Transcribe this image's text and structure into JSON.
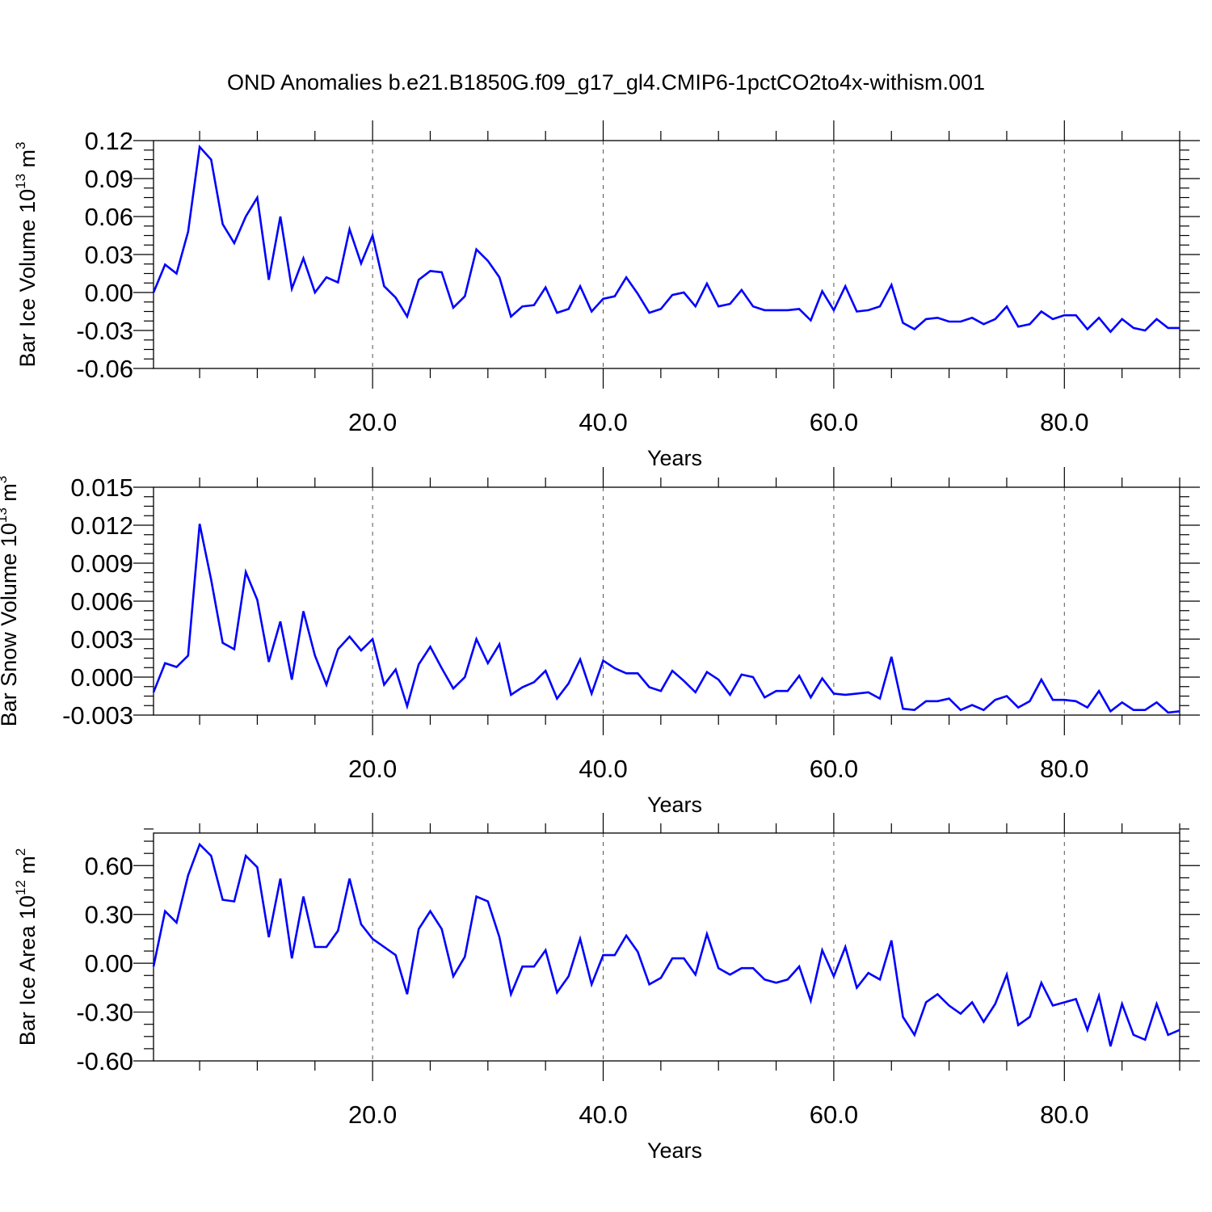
{
  "title": "OND Anomalies b.e21.B1850G.f09_g17_gl4.CMIP6-1pctCO2to4x-withism.001",
  "colors": {
    "series": "#0000ff",
    "axes": "#000000",
    "grid": "#555555"
  },
  "chart_data": [
    {
      "type": "line",
      "ylabel_main": "Bar Ice Volume 10",
      "ylabel_exp": "13",
      "ylabel_unit": " m",
      "ylabel_unit_exp": "3",
      "xlabel": "Years",
      "xlim": [
        1,
        90
      ],
      "ylim": [
        -0.06,
        0.12
      ],
      "x_ticks": [
        20.0,
        40.0,
        60.0,
        80.0
      ],
      "x_tick_labels": [
        "20.0",
        "40.0",
        "60.0",
        "80.0"
      ],
      "y_ticks": [
        0.12,
        0.09,
        0.06,
        0.03,
        0.0,
        -0.03,
        -0.06
      ],
      "y_tick_labels": [
        "0.12",
        "0.09",
        "0.06",
        "0.03",
        "0.00",
        "-0.03",
        "-0.06"
      ],
      "grid": "vertical dashed at major x ticks",
      "x": [
        1,
        2,
        3,
        4,
        5,
        6,
        7,
        8,
        9,
        10,
        11,
        12,
        13,
        14,
        15,
        16,
        17,
        18,
        19,
        20,
        21,
        22,
        23,
        24,
        25,
        26,
        27,
        28,
        29,
        30,
        31,
        32,
        33,
        34,
        35,
        36,
        37,
        38,
        39,
        40,
        41,
        42,
        43,
        44,
        45,
        46,
        47,
        48,
        49,
        50,
        51,
        52,
        53,
        54,
        55,
        56,
        57,
        58,
        59,
        60,
        61,
        62,
        63,
        64,
        65,
        66,
        67,
        68,
        69,
        70,
        71,
        72,
        73,
        74,
        75,
        76,
        77,
        78,
        79,
        80,
        81,
        82,
        83,
        84,
        85,
        86,
        87,
        88,
        89,
        90
      ],
      "y": [
        0.0,
        0.022,
        0.015,
        0.048,
        0.115,
        0.105,
        0.054,
        0.039,
        0.06,
        0.075,
        0.01,
        0.06,
        0.003,
        0.027,
        0.0,
        0.012,
        0.008,
        0.05,
        0.023,
        0.045,
        0.005,
        -0.004,
        -0.019,
        0.01,
        0.017,
        0.016,
        -0.012,
        -0.003,
        0.034,
        0.025,
        0.012,
        -0.019,
        -0.011,
        -0.01,
        0.004,
        -0.016,
        -0.013,
        0.005,
        -0.015,
        -0.005,
        -0.003,
        0.012,
        -0.001,
        -0.016,
        -0.013,
        -0.002,
        0.0,
        -0.011,
        0.007,
        -0.011,
        -0.009,
        0.002,
        -0.011,
        -0.014,
        -0.014,
        -0.014,
        -0.013,
        -0.022,
        0.001,
        -0.014,
        0.005,
        -0.015,
        -0.014,
        -0.011,
        0.006,
        -0.024,
        -0.029,
        -0.021,
        -0.02,
        -0.023,
        -0.023,
        -0.02,
        -0.025,
        -0.021,
        -0.011,
        -0.027,
        -0.025,
        -0.015,
        -0.021,
        -0.018,
        -0.018,
        -0.029,
        -0.02,
        -0.031,
        -0.021,
        -0.028,
        -0.03,
        -0.021,
        -0.028,
        -0.028
      ]
    },
    {
      "type": "line",
      "ylabel_main": "Bar Snow Volume 10",
      "ylabel_exp": "13",
      "ylabel_unit": " m",
      "ylabel_unit_exp": "3",
      "xlabel": "Years",
      "xlim": [
        1,
        90
      ],
      "ylim": [
        -0.003,
        0.015
      ],
      "x_ticks": [
        20.0,
        40.0,
        60.0,
        80.0
      ],
      "x_tick_labels": [
        "20.0",
        "40.0",
        "60.0",
        "80.0"
      ],
      "y_ticks": [
        0.015,
        0.012,
        0.009,
        0.006,
        0.003,
        0.0,
        -0.003
      ],
      "y_tick_labels": [
        "0.015",
        "0.012",
        "0.009",
        "0.006",
        "0.003",
        "0.000",
        "-0.003"
      ],
      "grid": "vertical dashed at major x ticks",
      "x": [
        1,
        2,
        3,
        4,
        5,
        6,
        7,
        8,
        9,
        10,
        11,
        12,
        13,
        14,
        15,
        16,
        17,
        18,
        19,
        20,
        21,
        22,
        23,
        24,
        25,
        26,
        27,
        28,
        29,
        30,
        31,
        32,
        33,
        34,
        35,
        36,
        37,
        38,
        39,
        40,
        41,
        42,
        43,
        44,
        45,
        46,
        47,
        48,
        49,
        50,
        51,
        52,
        53,
        54,
        55,
        56,
        57,
        58,
        59,
        60,
        61,
        62,
        63,
        64,
        65,
        66,
        67,
        68,
        69,
        70,
        71,
        72,
        73,
        74,
        75,
        76,
        77,
        78,
        79,
        80,
        81,
        82,
        83,
        84,
        85,
        86,
        87,
        88,
        89,
        90
      ],
      "y": [
        -0.0012,
        0.0011,
        0.0008,
        0.0017,
        0.0121,
        0.0077,
        0.0027,
        0.0022,
        0.0083,
        0.0061,
        0.0012,
        0.0044,
        -0.0002,
        0.0052,
        0.0017,
        -0.0006,
        0.0022,
        0.0032,
        0.0021,
        0.003,
        -0.0006,
        0.0006,
        -0.0023,
        0.001,
        0.0024,
        0.0007,
        -0.0009,
        0.0,
        0.003,
        0.0011,
        0.0026,
        -0.0014,
        -0.0008,
        -0.0004,
        0.0005,
        -0.0017,
        -0.0005,
        0.0014,
        -0.0013,
        0.0013,
        0.0007,
        0.0003,
        0.0003,
        -0.0008,
        -0.0011,
        0.0005,
        -0.0003,
        -0.0012,
        0.0004,
        -0.0002,
        -0.0014,
        0.0002,
        0.0,
        -0.0016,
        -0.0011,
        -0.0011,
        0.0001,
        -0.0016,
        -0.0001,
        -0.0013,
        -0.0014,
        -0.0013,
        -0.0012,
        -0.0017,
        0.0016,
        -0.0025,
        -0.0026,
        -0.0019,
        -0.0019,
        -0.0017,
        -0.0026,
        -0.0022,
        -0.0026,
        -0.0018,
        -0.0015,
        -0.0024,
        -0.0019,
        -0.0002,
        -0.0018,
        -0.0018,
        -0.0019,
        -0.0024,
        -0.0011,
        -0.0027,
        -0.002,
        -0.0026,
        -0.0026,
        -0.002,
        -0.0028,
        -0.0027
      ]
    },
    {
      "type": "line",
      "ylabel_main": "Bar Ice Area 10",
      "ylabel_exp": "12",
      "ylabel_unit": " m",
      "ylabel_unit_exp": "2",
      "xlabel": "Years",
      "xlim": [
        1,
        90
      ],
      "ylim": [
        -0.6,
        0.8
      ],
      "x_ticks": [
        20.0,
        40.0,
        60.0,
        80.0
      ],
      "x_tick_labels": [
        "20.0",
        "40.0",
        "60.0",
        "80.0"
      ],
      "y_ticks": [
        0.6,
        0.3,
        0.0,
        -0.3,
        -0.6
      ],
      "y_tick_labels": [
        "0.60",
        "0.30",
        "0.00",
        "-0.30",
        "-0.60"
      ],
      "grid": "vertical dashed at major x ticks",
      "x": [
        1,
        2,
        3,
        4,
        5,
        6,
        7,
        8,
        9,
        10,
        11,
        12,
        13,
        14,
        15,
        16,
        17,
        18,
        19,
        20,
        21,
        22,
        23,
        24,
        25,
        26,
        27,
        28,
        29,
        30,
        31,
        32,
        33,
        34,
        35,
        36,
        37,
        38,
        39,
        40,
        41,
        42,
        43,
        44,
        45,
        46,
        47,
        48,
        49,
        50,
        51,
        52,
        53,
        54,
        55,
        56,
        57,
        58,
        59,
        60,
        61,
        62,
        63,
        64,
        65,
        66,
        67,
        68,
        69,
        70,
        71,
        72,
        73,
        74,
        75,
        76,
        77,
        78,
        79,
        80,
        81,
        82,
        83,
        84,
        85,
        86,
        87,
        88,
        89,
        90
      ],
      "y": [
        -0.02,
        0.32,
        0.25,
        0.54,
        0.73,
        0.66,
        0.39,
        0.38,
        0.66,
        0.59,
        0.16,
        0.52,
        0.03,
        0.41,
        0.1,
        0.1,
        0.2,
        0.52,
        0.24,
        0.15,
        0.1,
        0.05,
        -0.19,
        0.21,
        0.32,
        0.21,
        -0.08,
        0.04,
        0.41,
        0.38,
        0.16,
        -0.19,
        -0.02,
        -0.02,
        0.08,
        -0.18,
        -0.08,
        0.15,
        -0.13,
        0.05,
        0.05,
        0.17,
        0.07,
        -0.13,
        -0.09,
        0.03,
        0.03,
        -0.07,
        0.18,
        -0.03,
        -0.07,
        -0.03,
        -0.03,
        -0.1,
        -0.12,
        -0.1,
        -0.02,
        -0.23,
        0.08,
        -0.08,
        0.1,
        -0.15,
        -0.06,
        -0.1,
        0.14,
        -0.33,
        -0.44,
        -0.24,
        -0.19,
        -0.26,
        -0.31,
        -0.24,
        -0.36,
        -0.25,
        -0.07,
        -0.38,
        -0.33,
        -0.12,
        -0.26,
        -0.24,
        -0.22,
        -0.41,
        -0.2,
        -0.51,
        -0.25,
        -0.44,
        -0.47,
        -0.25,
        -0.44,
        -0.41
      ]
    }
  ]
}
